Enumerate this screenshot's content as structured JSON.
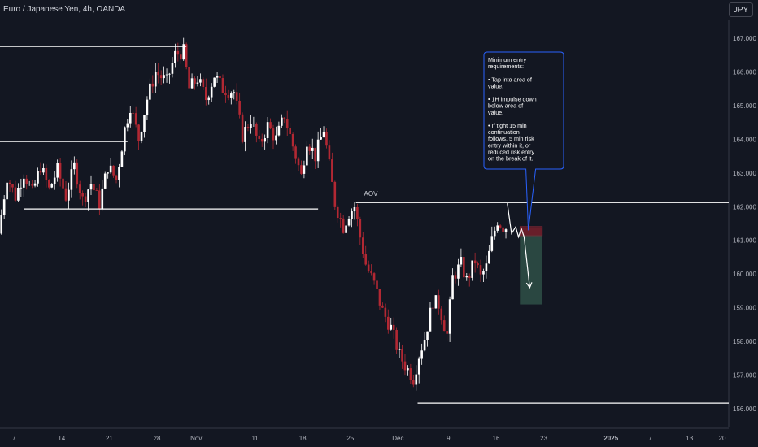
{
  "header": {
    "title": "Euro / Japanese Yen, 4h, OANDA",
    "currency": "JPY"
  },
  "chart_data": {
    "type": "candlestick",
    "title": "Euro / Japanese Yen, 4h, OANDA",
    "ylim": [
      155.45,
      167.55
    ],
    "xlim": [
      0,
      260
    ],
    "y_ticks": [
      {
        "value": 156,
        "label": "156.000"
      },
      {
        "value": 157,
        "label": "157.000"
      },
      {
        "value": 158,
        "label": "158.000"
      },
      {
        "value": 159,
        "label": "159.000"
      },
      {
        "value": 160,
        "label": "160.000"
      },
      {
        "value": 161,
        "label": "161.000"
      },
      {
        "value": 162,
        "label": "162.000"
      },
      {
        "value": 163,
        "label": "163.000"
      },
      {
        "value": 164,
        "label": "164.000"
      },
      {
        "value": 165,
        "label": "165.000"
      },
      {
        "value": 166,
        "label": "166.000"
      },
      {
        "value": 167,
        "label": "167.000"
      }
    ],
    "x_ticks": [
      {
        "index": 5,
        "label": "7",
        "bold": false
      },
      {
        "index": 22,
        "label": "14",
        "bold": false
      },
      {
        "index": 39,
        "label": "21",
        "bold": false
      },
      {
        "index": 56,
        "label": "28",
        "bold": false
      },
      {
        "index": 70,
        "label": "Nov",
        "bold": false
      },
      {
        "index": 91,
        "label": "11",
        "bold": false
      },
      {
        "index": 108,
        "label": "18",
        "bold": false
      },
      {
        "index": 125,
        "label": "25",
        "bold": false
      },
      {
        "index": 142,
        "label": "Dec",
        "bold": false
      },
      {
        "index": 160,
        "label": "9",
        "bold": false
      },
      {
        "index": 177,
        "label": "16",
        "bold": false
      },
      {
        "index": 194,
        "label": "23",
        "bold": false
      },
      {
        "index": 218,
        "label": "2025",
        "bold": true
      },
      {
        "index": 232,
        "label": "7",
        "bold": false
      },
      {
        "index": 246,
        "label": "13",
        "bold": false
      },
      {
        "index": 262,
        "label": "20",
        "bold": false
      }
    ],
    "price_path": [
      [
        0,
        161.2
      ],
      [
        3,
        162.9
      ],
      [
        6,
        162.3
      ],
      [
        9,
        163.0
      ],
      [
        12,
        162.4
      ],
      [
        15,
        163.2
      ],
      [
        18,
        162.5
      ],
      [
        21,
        163.1
      ],
      [
        24,
        162.3
      ],
      [
        27,
        163.2
      ],
      [
        30,
        162.2
      ],
      [
        33,
        162.7
      ],
      [
        36,
        162.1
      ],
      [
        39,
        163.2
      ],
      [
        42,
        162.8
      ],
      [
        45,
        164.3
      ],
      [
        47,
        165.0
      ],
      [
        50,
        164.0
      ],
      [
        53,
        165.2
      ],
      [
        56,
        166.0
      ],
      [
        60,
        165.7
      ],
      [
        63,
        166.5
      ],
      [
        66,
        166.6
      ],
      [
        68,
        165.5
      ],
      [
        71,
        165.8
      ],
      [
        74,
        165.2
      ],
      [
        77,
        165.9
      ],
      [
        80,
        165.5
      ],
      [
        84,
        165.4
      ],
      [
        87,
        164.1
      ],
      [
        90,
        164.6
      ],
      [
        93,
        163.8
      ],
      [
        96,
        164.4
      ],
      [
        99,
        164.0
      ],
      [
        102,
        164.7
      ],
      [
        105,
        163.8
      ],
      [
        108,
        162.9
      ],
      [
        110,
        164.0
      ],
      [
        113,
        163.5
      ],
      [
        116,
        164.3
      ],
      [
        118,
        163.2
      ],
      [
        120,
        162.1
      ],
      [
        123,
        161.4
      ],
      [
        125,
        161.8
      ],
      [
        127,
        162.0
      ],
      [
        129,
        161.1
      ],
      [
        131,
        160.3
      ],
      [
        134,
        159.7
      ],
      [
        137,
        158.9
      ],
      [
        140,
        158.4
      ],
      [
        143,
        157.6
      ],
      [
        145,
        157.3
      ],
      [
        148,
        156.9
      ],
      [
        150,
        157.6
      ],
      [
        152,
        158.1
      ],
      [
        155,
        159.2
      ],
      [
        157,
        159.1
      ],
      [
        160,
        158.2
      ],
      [
        162,
        159.9
      ],
      [
        165,
        160.3
      ],
      [
        167,
        159.8
      ],
      [
        170,
        160.4
      ],
      [
        172,
        159.9
      ],
      [
        174,
        160.2
      ],
      [
        176,
        161.0
      ],
      [
        178,
        161.6
      ],
      [
        180,
        161.4
      ]
    ],
    "horizontal_lines": [
      {
        "y": 166.75,
        "from": 0,
        "to": 66.5
      },
      {
        "y": 163.93,
        "from": 0,
        "to": 45.5
      },
      {
        "y": 161.93,
        "from": 8.5,
        "to": 113.5
      },
      {
        "y": 162.12,
        "from": 127,
        "to": 260
      },
      {
        "y": 156.17,
        "from": 149,
        "to": 260
      }
    ],
    "annotations": {
      "aov_label": "AOV",
      "aov_anchor": {
        "x": 129,
        "y": 162.25
      },
      "projection": {
        "zigzag": [
          [
            181,
            162.1
          ],
          [
            182.5,
            161.2
          ],
          [
            184,
            161.4
          ],
          [
            185,
            161.1
          ],
          [
            186,
            161.35
          ],
          [
            187,
            161.1
          ]
        ],
        "arrow": [
          [
            187,
            161.1
          ],
          [
            189,
            159.6
          ]
        ]
      },
      "position": {
        "x_from": 185.5,
        "x_to": 193.5,
        "entry": 161.15,
        "stop": 161.4,
        "target": 159.1
      },
      "note": {
        "pointer": {
          "x": 188.5,
          "y": 161.3
        },
        "lines": [
          "Minimum entry",
          "requirements:",
          "",
          "• Tap into area of",
          "value.",
          "",
          "• 1H impulse down",
          "below area of",
          "value.",
          "",
          "• If tight 15 min",
          "continuation",
          "follows, 5 min risk",
          "entry within it, or",
          "reduced risk entry",
          "on the break of it."
        ]
      }
    }
  },
  "colors": {
    "background": "#131722",
    "up_candle": "#ffffff",
    "down_candle": "#b22833",
    "level_line": "#ffffff",
    "axis_text": "#b2b5be",
    "stop_zone": "#6d1f2b",
    "target_zone": "#2b4a43",
    "note_border": "#2962ff",
    "note_fill": "#131722"
  }
}
